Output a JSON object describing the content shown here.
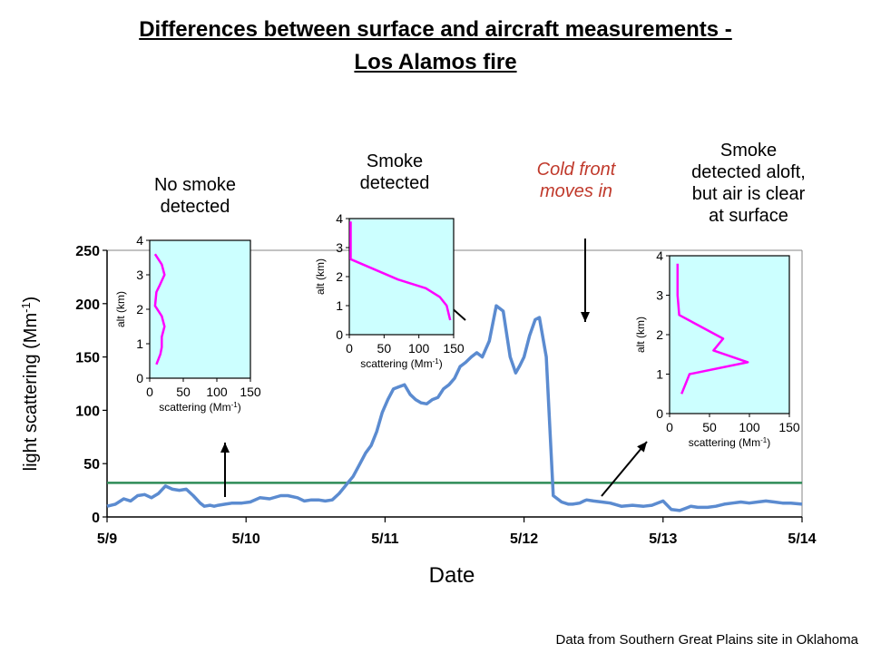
{
  "title_line1": "Differences between surface and aircraft measurements -",
  "title_line2": "Los Alamos fire",
  "annotations": {
    "no_smoke": [
      "No smoke",
      "detected"
    ],
    "smoke": [
      "Smoke",
      "detected"
    ],
    "cold_front": [
      "Cold front",
      "moves in"
    ],
    "aloft": [
      "Smoke",
      "detected aloft,",
      "but air is clear",
      "at surface"
    ]
  },
  "credit": "Data from Southern Great Plains site in Oklahoma",
  "colors": {
    "series": "#5b8bd0",
    "threshold": "#2e8b57",
    "profile": "#ff00ff",
    "inset_bg": "#ccffff",
    "cold_front": "#c0392b"
  },
  "chart_data": [
    {
      "type": "line",
      "xlabel": "Date",
      "ylabel": "light scattering (Mm-1)",
      "xlim": [
        0,
        5
      ],
      "ylim": [
        0,
        250
      ],
      "x_ticks": [
        0,
        1,
        2,
        3,
        4,
        5
      ],
      "x_tick_labels": [
        "5/9",
        "5/10",
        "5/11",
        "5/12",
        "5/13",
        "5/14"
      ],
      "y_ticks": [
        0,
        50,
        100,
        150,
        200,
        250
      ],
      "reference_line": 32,
      "series": [
        {
          "x": [
            0,
            0.06,
            0.12,
            0.17,
            0.22,
            0.27,
            0.32,
            0.37,
            0.42,
            0.47,
            0.52,
            0.57,
            0.62,
            0.67,
            0.7,
            0.74,
            0.77,
            0.8,
            0.85,
            0.9,
            0.97,
            1.03,
            1.1,
            1.17,
            1.25,
            1.3,
            1.37,
            1.42,
            1.47,
            1.52,
            1.57,
            1.62,
            1.67,
            1.72,
            1.77,
            1.82,
            1.86,
            1.9,
            1.94,
            1.98,
            2.02,
            2.06,
            2.1,
            2.14,
            2.18,
            2.22,
            2.26,
            2.3,
            2.34,
            2.38,
            2.42,
            2.46,
            2.5,
            2.54,
            2.58,
            2.62,
            2.66,
            2.7,
            2.75,
            2.8,
            2.85,
            2.9,
            2.94,
            2.97,
            3.0,
            3.04,
            3.08,
            3.11,
            3.16,
            3.21,
            3.27,
            3.32,
            3.35,
            3.4,
            3.43,
            3.45,
            3.5,
            3.56,
            3.62,
            3.7,
            3.78,
            3.86,
            3.92,
            4.0,
            4.06,
            4.12,
            4.16,
            4.2,
            4.25,
            4.32,
            4.38,
            4.44,
            4.5,
            4.56,
            4.62,
            4.68,
            4.74,
            4.8,
            4.86,
            4.92,
            5.0
          ],
          "y": [
            10,
            12,
            17,
            15,
            20,
            21,
            18,
            22,
            29,
            26,
            25,
            26,
            20,
            13,
            10,
            11,
            10,
            11,
            12,
            13,
            13,
            14,
            18,
            17,
            20,
            20,
            18,
            15,
            16,
            16,
            15,
            16,
            22,
            30,
            38,
            50,
            60,
            67,
            80,
            98,
            110,
            120,
            122,
            124,
            115,
            110,
            107,
            106,
            110,
            112,
            120,
            124,
            130,
            141,
            145,
            150,
            154,
            150,
            165,
            198,
            193,
            150,
            135,
            142,
            150,
            170,
            185,
            187,
            150,
            20,
            14,
            12,
            12,
            13,
            15,
            16,
            15,
            14,
            13,
            10,
            11,
            10,
            11,
            15,
            7,
            6,
            8,
            10,
            9,
            9,
            10,
            12,
            13,
            14,
            13,
            14,
            15,
            14,
            13,
            13,
            12
          ]
        }
      ]
    },
    {
      "type": "line",
      "xlabel": "scattering (Mm-1)",
      "ylabel": "alt (km)",
      "xlim": [
        0,
        150
      ],
      "ylim": [
        0,
        4
      ],
      "x_ticks": [
        0,
        50,
        100,
        150
      ],
      "y_ticks": [
        0,
        1,
        2,
        3,
        4
      ],
      "series": [
        {
          "x": [
            8,
            18,
            22,
            15,
            10,
            8,
            18,
            22,
            18,
            18,
            16,
            10
          ],
          "y": [
            3.6,
            3.3,
            3.0,
            2.7,
            2.5,
            2.1,
            1.8,
            1.5,
            1.2,
            0.9,
            0.7,
            0.4
          ]
        }
      ]
    },
    {
      "type": "line",
      "xlabel": "scattering (Mm-1)",
      "ylabel": "alt (km)",
      "xlim": [
        0,
        150
      ],
      "ylim": [
        0,
        4
      ],
      "x_ticks": [
        0,
        50,
        100,
        150
      ],
      "y_ticks": [
        0,
        1,
        2,
        3,
        4
      ],
      "series": [
        {
          "x": [
            2,
            2,
            70,
            110,
            130,
            140,
            145
          ],
          "y": [
            3.9,
            2.6,
            1.9,
            1.6,
            1.3,
            1.0,
            0.5
          ]
        }
      ]
    },
    {
      "type": "line",
      "xlabel": "scattering (Mm-1)",
      "ylabel": "alt (km)",
      "xlim": [
        0,
        150
      ],
      "ylim": [
        0,
        4
      ],
      "x_ticks": [
        0,
        50,
        100,
        150
      ],
      "y_ticks": [
        0,
        1,
        2,
        3,
        4
      ],
      "series": [
        {
          "x": [
            10,
            10,
            12,
            67,
            55,
            98,
            25,
            15
          ],
          "y": [
            3.8,
            3.0,
            2.5,
            1.9,
            1.6,
            1.3,
            1.0,
            0.5
          ]
        }
      ]
    }
  ]
}
